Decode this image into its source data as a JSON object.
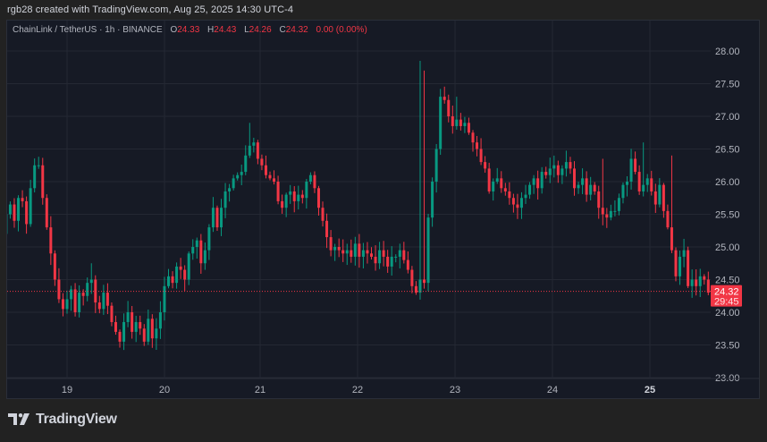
{
  "caption": "rgb28 created with TradingView.com, Aug 25, 2025 14:30 UTC-4",
  "legend": {
    "symbol": "ChainLink / TetherUS · 1h · BINANCE",
    "open_label": "O",
    "open": "24.33",
    "high_label": "H",
    "high": "24.43",
    "low_label": "L",
    "low": "24.26",
    "close_label": "C",
    "close": "24.32",
    "change": "0.00 (0.00%)"
  },
  "price_badge": {
    "price": "24.32",
    "countdown": "29:45"
  },
  "footer": {
    "brand": "TradingView"
  },
  "colors": {
    "up": "#089981",
    "down": "#f23645",
    "background": "#161a25",
    "grid": "#242833",
    "axis_text": "#b2b5be"
  },
  "chart_data": {
    "type": "candlestick",
    "title": "ChainLink / TetherUS · 1h · BINANCE",
    "xlabel": "",
    "ylabel": "",
    "ylim": [
      23.0,
      28.0
    ],
    "y_ticks": [
      "28.00",
      "27.50",
      "27.00",
      "26.50",
      "26.00",
      "25.50",
      "25.00",
      "24.50",
      "24.00",
      "23.50",
      "23.00"
    ],
    "x_ticks": [
      "19",
      "20",
      "21",
      "22",
      "23",
      "24",
      "25"
    ],
    "grid": true,
    "last_price": 24.32,
    "closes": [
      25.5,
      25.65,
      25.4,
      25.75,
      25.7,
      25.35,
      25.9,
      26.25,
      26.25,
      25.75,
      25.3,
      24.9,
      24.5,
      24.2,
      24.05,
      24.2,
      24.35,
      24.0,
      24.3,
      24.25,
      24.45,
      24.5,
      24.15,
      24.05,
      24.3,
      24.1,
      23.85,
      23.7,
      23.55,
      23.85,
      24.0,
      23.7,
      23.85,
      23.75,
      23.55,
      23.9,
      23.6,
      23.75,
      24.0,
      24.4,
      24.55,
      24.45,
      24.7,
      24.65,
      24.5,
      24.9,
      25.0,
      25.1,
      24.75,
      24.95,
      25.3,
      25.6,
      25.3,
      25.6,
      25.85,
      25.9,
      26.05,
      26.1,
      26.15,
      26.4,
      26.55,
      26.6,
      26.35,
      26.25,
      26.1,
      26.05,
      26.0,
      25.7,
      25.6,
      25.8,
      25.85,
      25.7,
      25.8,
      25.75,
      26.0,
      26.1,
      25.9,
      25.6,
      25.4,
      25.15,
      24.95,
      25.0,
      24.95,
      24.9,
      24.95,
      24.85,
      25.05,
      24.85,
      24.95,
      24.9,
      24.85,
      24.75,
      24.95,
      24.85,
      24.7,
      24.85,
      24.85,
      24.95,
      24.8,
      24.65,
      24.4,
      24.3,
      24.5,
      24.45,
      25.45,
      26.0,
      26.5,
      27.3,
      27.25,
      27.0,
      26.85,
      26.95,
      26.85,
      26.9,
      26.75,
      26.6,
      26.5,
      26.3,
      26.2,
      25.85,
      26.0,
      26.05,
      25.9,
      25.85,
      25.75,
      25.65,
      25.6,
      25.75,
      25.8,
      25.95,
      26.05,
      25.9,
      26.15,
      26.1,
      26.2,
      26.25,
      26.1,
      26.2,
      26.3,
      26.2,
      25.9,
      25.95,
      26.05,
      25.8,
      25.95,
      25.85,
      25.6,
      25.5,
      25.45,
      25.55,
      25.55,
      25.75,
      25.95,
      26.0,
      26.35,
      26.15,
      25.85,
      25.95,
      26.05,
      25.85,
      25.65,
      25.95,
      25.55,
      25.3,
      24.95,
      24.55,
      24.85,
      24.95,
      24.4,
      24.5,
      24.4,
      24.55,
      24.5,
      24.3,
      24.4,
      24.33,
      24.32
    ],
    "first_open": 25.2,
    "spike_highs": {
      "21": 24.75,
      "38": 24.15,
      "60": 26.9,
      "102": 27.85,
      "103": 27.7,
      "111": 27.3,
      "157": 26.6,
      "154": 26.5,
      "164": 26.4,
      "147": 26.35
    },
    "notes": "Approximate hourly candles from Aug 18 ~09:00 to Aug 25 ~14:00; open of each bar = previous close."
  }
}
